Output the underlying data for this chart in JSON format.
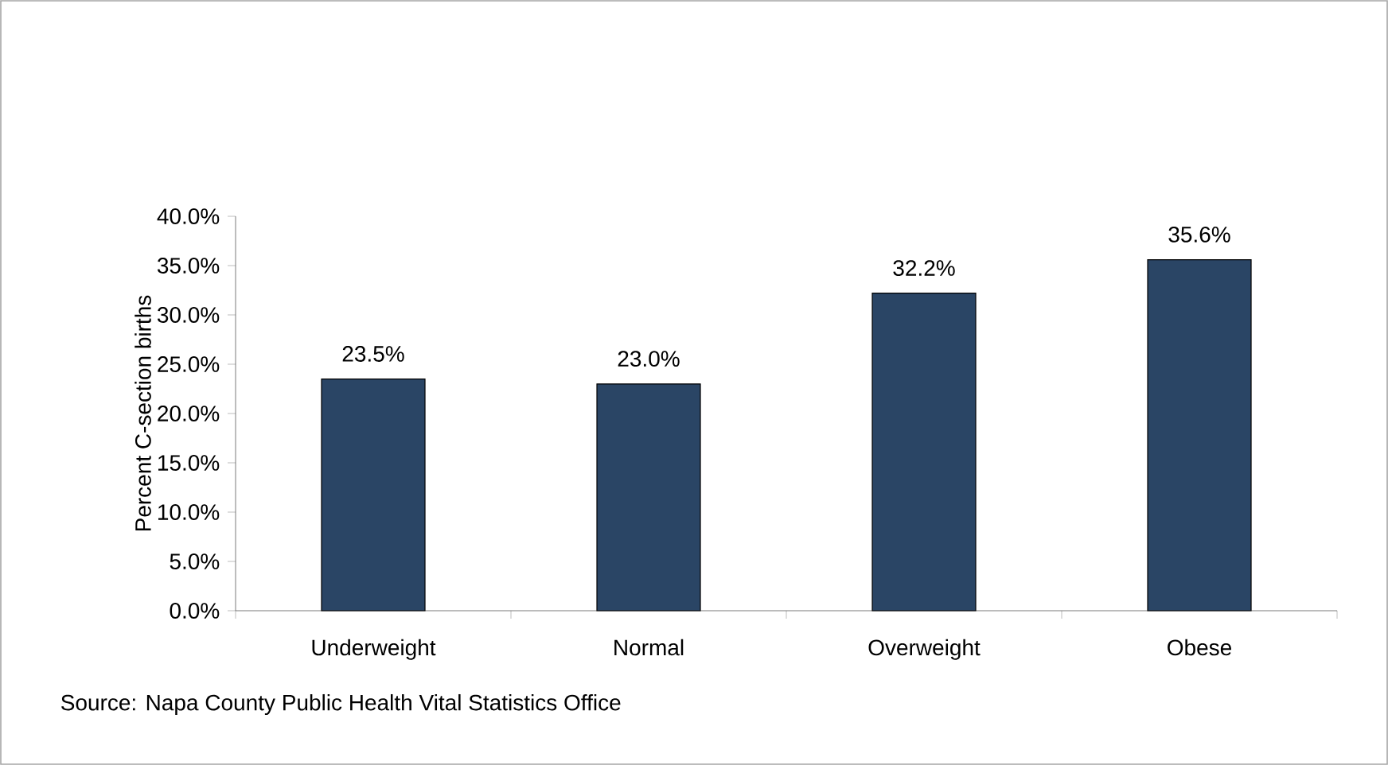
{
  "chart_data": {
    "type": "bar",
    "categories": [
      "Underweight",
      "Normal",
      "Overweight",
      "Obese"
    ],
    "values": [
      23.5,
      23.0,
      32.2,
      35.6
    ],
    "value_labels": [
      "23.5%",
      "23.0%",
      "32.2%",
      "35.6%"
    ],
    "color": "#2a4565",
    "ylabel": "Percent C-section births",
    "ylim": [
      0,
      40
    ],
    "yticks": [
      {
        "value": 0,
        "label": "0.0%"
      },
      {
        "value": 5,
        "label": "5.0%"
      },
      {
        "value": 10,
        "label": "10.0%"
      },
      {
        "value": 15,
        "label": "15.0%"
      },
      {
        "value": 20,
        "label": "20.0%"
      },
      {
        "value": 25,
        "label": "25.0%"
      },
      {
        "value": 30,
        "label": "30.0%"
      },
      {
        "value": 35,
        "label": "35.0%"
      },
      {
        "value": 40,
        "label": "40.0%"
      }
    ],
    "grid": false,
    "annotations": [
      "Source: Napa County Public Health Vital Statistics Office"
    ]
  }
}
